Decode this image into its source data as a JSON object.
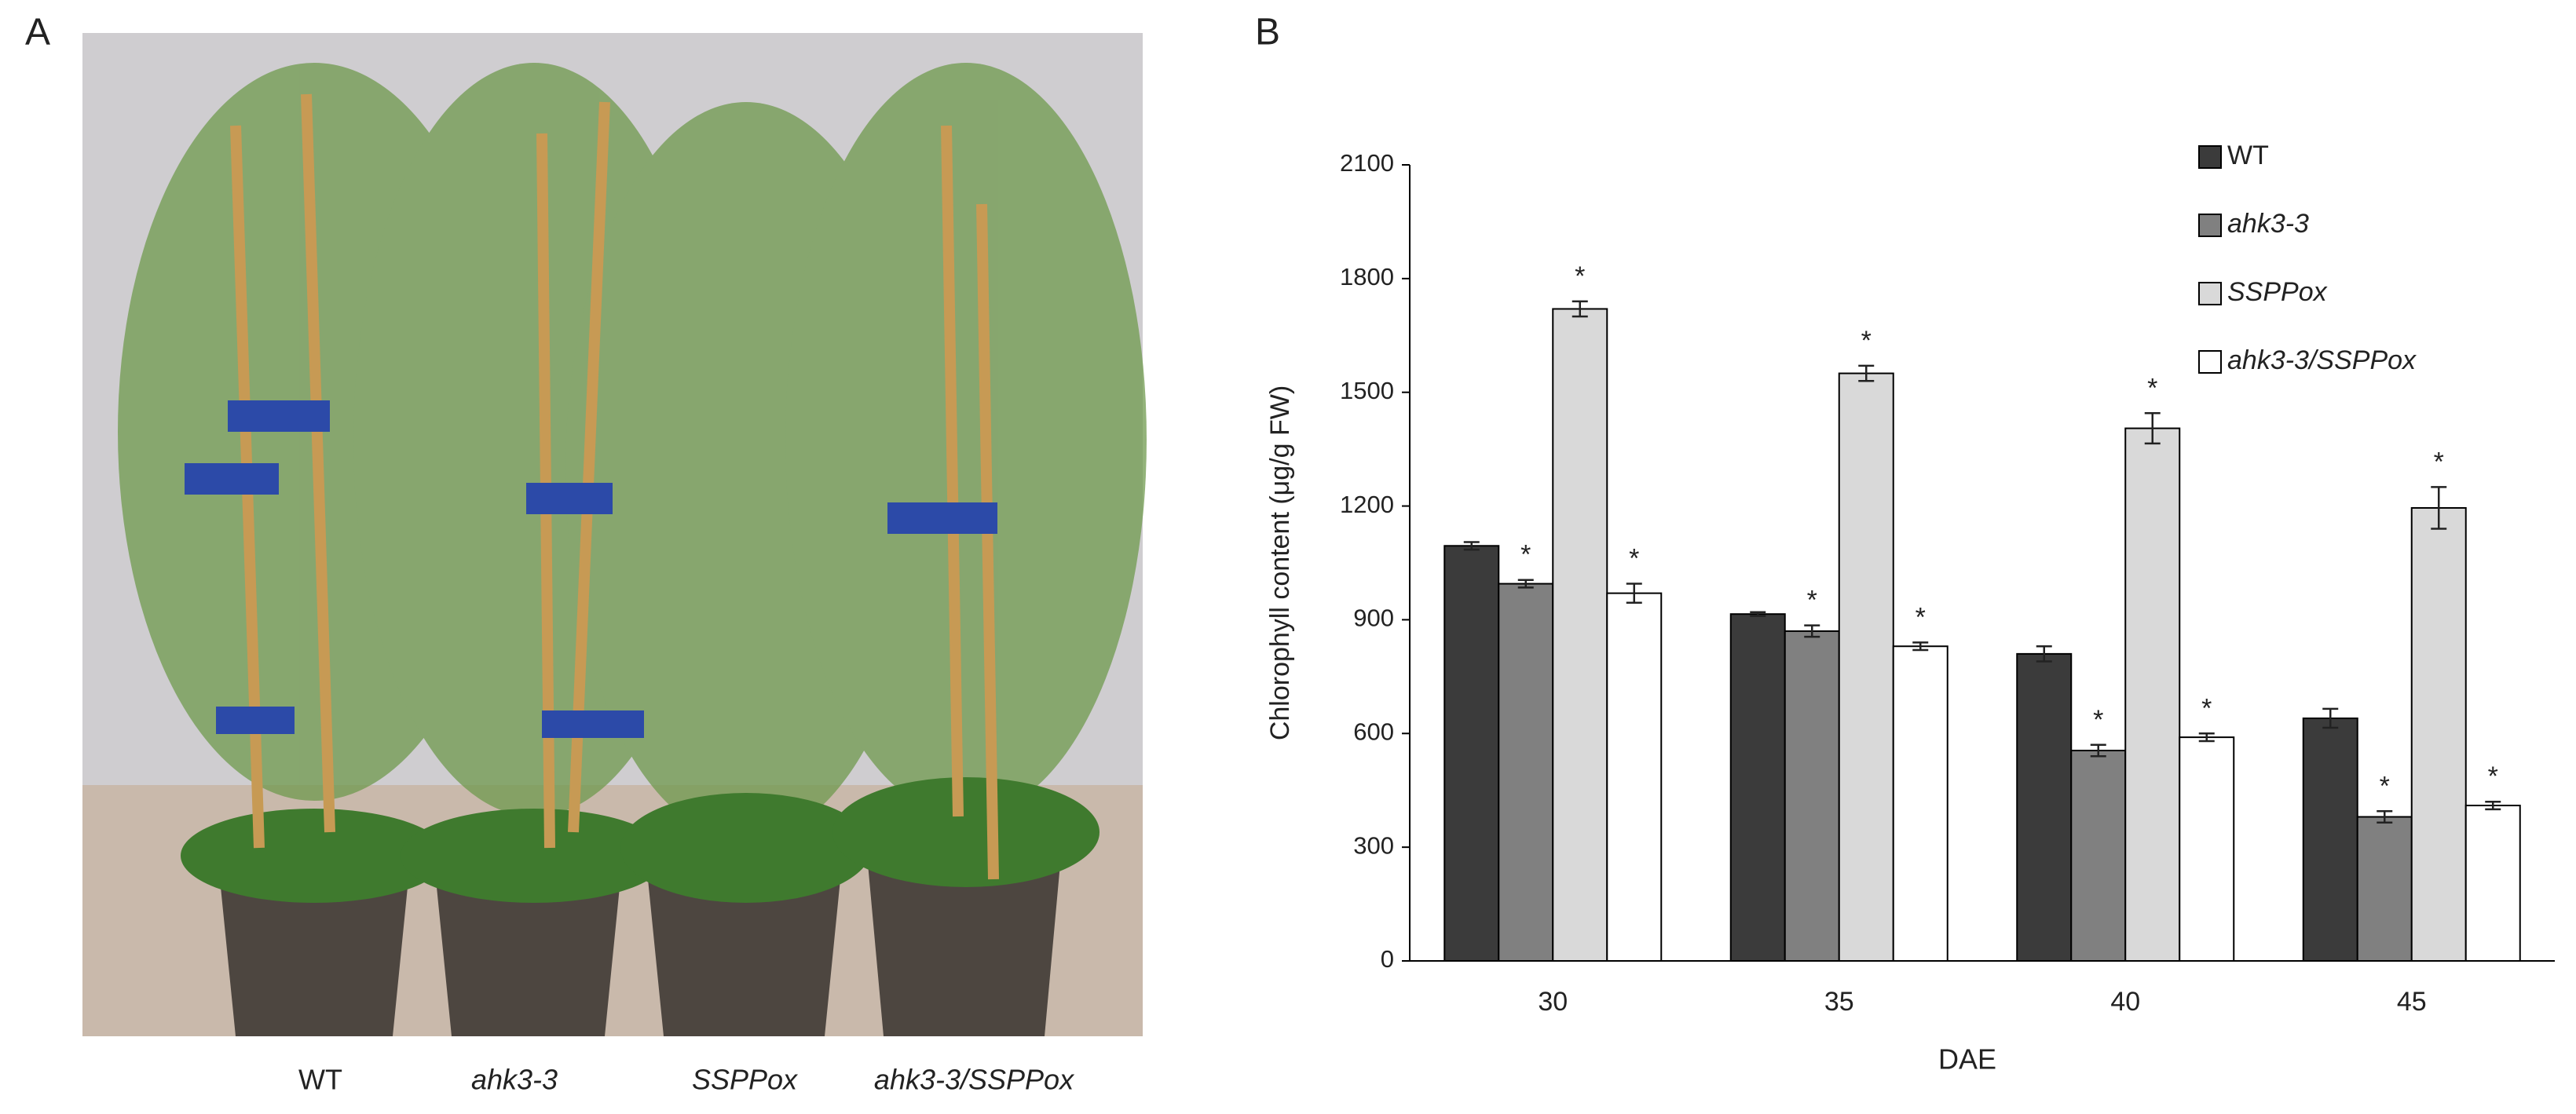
{
  "panel_labels": [
    "A",
    "B"
  ],
  "photo_labels": [
    "WT",
    "ahk3-3",
    "SSPPox",
    "ahk3-3/SSPPox"
  ],
  "chart_data": {
    "type": "bar",
    "x_label": "DAE",
    "y_label": "Chlorophyll content (μg/g FW)",
    "categories": [
      "30",
      "35",
      "40",
      "45"
    ],
    "series": [
      {
        "name": "WT",
        "color": "#3b3b3b",
        "font_style": "normal",
        "values": [
          1095,
          915,
          810,
          640
        ],
        "errors": [
          10,
          5,
          20,
          25
        ],
        "significance": [
          null,
          null,
          null,
          null
        ]
      },
      {
        "name": "ahk3-3",
        "color": "#808080",
        "font_style": "italic",
        "values": [
          995,
          870,
          555,
          380
        ],
        "errors": [
          10,
          15,
          15,
          15
        ],
        "significance": [
          "*",
          "*",
          "*",
          "*"
        ]
      },
      {
        "name": "SSPPox",
        "color": "#d9d9d9",
        "font_style": "italic",
        "values": [
          1720,
          1550,
          1405,
          1195
        ],
        "errors": [
          20,
          20,
          40,
          55
        ],
        "significance": [
          "*",
          "*",
          "*",
          "*"
        ]
      },
      {
        "name": "ahk3-3/SSPPox",
        "color": "#ffffff",
        "font_style": "italic",
        "values": [
          970,
          830,
          590,
          410
        ],
        "errors": [
          25,
          10,
          10,
          10
        ],
        "significance": [
          "*",
          "*",
          "*",
          "*"
        ]
      }
    ],
    "ylim": [
      0,
      2100
    ],
    "yticks": [
      0,
      300,
      600,
      900,
      1200,
      1500,
      1800,
      2100
    ],
    "grid": false,
    "legend": "upper right"
  }
}
